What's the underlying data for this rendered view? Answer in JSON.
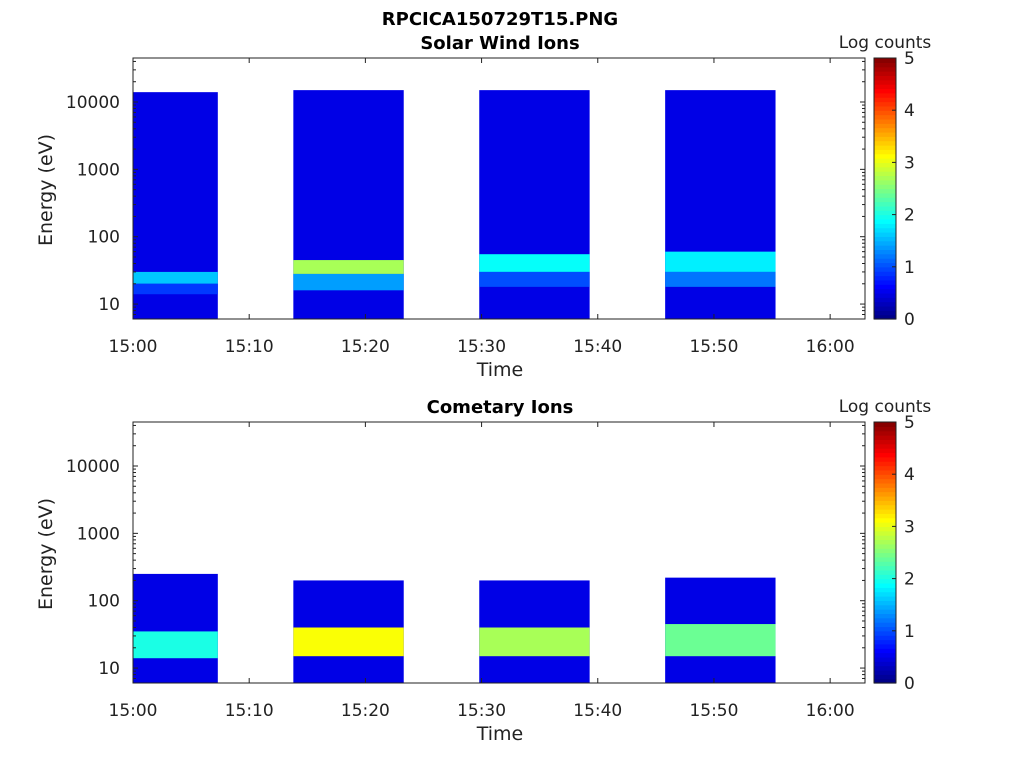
{
  "figure_title": "RPCICA150729T15.PNG",
  "chart_data": [
    {
      "type": "heatmap",
      "title": "Solar Wind Ions",
      "xlabel": "Time",
      "ylabel": "Energy (eV)",
      "x_ticks": [
        "15:00",
        "15:10",
        "15:20",
        "15:30",
        "15:40",
        "15:50",
        "16:00"
      ],
      "x_range_minutes": [
        0,
        63
      ],
      "y_ticks": [
        "10",
        "100",
        "1000",
        "10000"
      ],
      "y_scale": "log",
      "y_range_ev": [
        6,
        45000
      ],
      "colorbar": {
        "label": "Log counts",
        "range": [
          0,
          5
        ],
        "ticks": [
          "0",
          "1",
          "2",
          "3",
          "4",
          "5"
        ],
        "colormap": "jet"
      },
      "bins": [
        {
          "t_start": 0,
          "t_end": 7.3,
          "top_ev": 14000,
          "low_level": [
            {
              "e_min": 20,
              "e_max": 30,
              "level": 1.6
            },
            {
              "e_min": 14,
              "e_max": 20,
              "level": 0.9
            }
          ]
        },
        {
          "t_start": 13.8,
          "t_end": 23.3,
          "top_ev": 15000,
          "low_level": [
            {
              "e_min": 28,
              "e_max": 45,
              "level": 2.7
            },
            {
              "e_min": 16,
              "e_max": 28,
              "level": 1.4
            }
          ]
        },
        {
          "t_start": 29.8,
          "t_end": 39.3,
          "top_ev": 15000,
          "low_level": [
            {
              "e_min": 30,
              "e_max": 55,
              "level": 1.9
            },
            {
              "e_min": 18,
              "e_max": 30,
              "level": 1.0
            }
          ]
        },
        {
          "t_start": 45.8,
          "t_end": 55.3,
          "top_ev": 15000,
          "low_level": [
            {
              "e_min": 30,
              "e_max": 60,
              "level": 1.8
            },
            {
              "e_min": 18,
              "e_max": 30,
              "level": 1.2
            }
          ]
        }
      ]
    },
    {
      "type": "heatmap",
      "title": "Cometary Ions",
      "xlabel": "Time",
      "ylabel": "Energy (eV)",
      "x_ticks": [
        "15:00",
        "15:10",
        "15:20",
        "15:30",
        "15:40",
        "15:50",
        "16:00"
      ],
      "x_range_minutes": [
        0,
        63
      ],
      "y_ticks": [
        "10",
        "100",
        "1000",
        "10000"
      ],
      "y_scale": "log",
      "y_range_ev": [
        6,
        45000
      ],
      "colorbar": {
        "label": "Log counts",
        "range": [
          0,
          5
        ],
        "ticks": [
          "0",
          "1",
          "2",
          "3",
          "4",
          "5"
        ],
        "colormap": "jet"
      },
      "bins": [
        {
          "t_start": 0,
          "t_end": 7.3,
          "top_ev": 250,
          "low_level": [
            {
              "e_min": 14,
              "e_max": 35,
              "level": 2.0
            }
          ]
        },
        {
          "t_start": 13.8,
          "t_end": 23.3,
          "top_ev": 200,
          "low_level": [
            {
              "e_min": 15,
              "e_max": 40,
              "level": 3.1
            }
          ]
        },
        {
          "t_start": 29.8,
          "t_end": 39.3,
          "top_ev": 200,
          "low_level": [
            {
              "e_min": 15,
              "e_max": 40,
              "level": 2.7
            }
          ]
        },
        {
          "t_start": 45.8,
          "t_end": 55.3,
          "top_ev": 220,
          "low_level": [
            {
              "e_min": 15,
              "e_max": 45,
              "level": 2.4
            }
          ]
        }
      ]
    }
  ]
}
